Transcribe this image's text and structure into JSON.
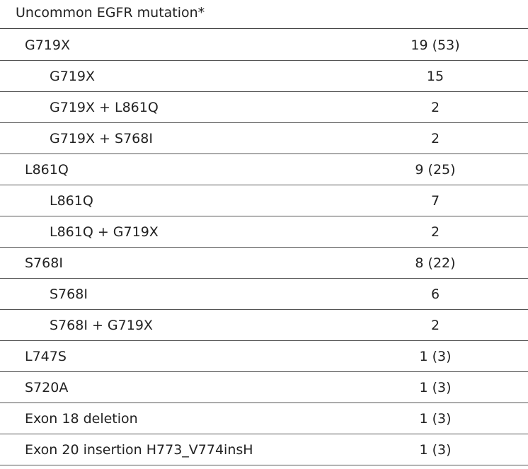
{
  "table": {
    "header": "Uncommon EGFR mutation*",
    "groups": [
      {
        "label": "G719X",
        "value": "19 (53)",
        "items": [
          {
            "label": "G719X",
            "value": "15"
          },
          {
            "label": "G719X + L861Q",
            "value": "2"
          },
          {
            "label": "G719X + S768I",
            "value": "2"
          }
        ]
      },
      {
        "label": "L861Q",
        "value": "9 (25)",
        "items": [
          {
            "label": "L861Q",
            "value": "7"
          },
          {
            "label": "L861Q + G719X",
            "value": "2"
          }
        ]
      },
      {
        "label": "S768I",
        "value": "8 (22)",
        "items": [
          {
            "label": "S768I",
            "value": "6"
          },
          {
            "label": "S768I + G719X",
            "value": "2"
          }
        ]
      },
      {
        "label": "L747S",
        "value": "1 (3)",
        "items": []
      },
      {
        "label": "S720A",
        "value": "1 (3)",
        "items": []
      },
      {
        "label": "Exon 18 deletion",
        "value": "1 (3)",
        "items": []
      },
      {
        "label": "Exon 20 insertion H773_V774insH",
        "value": "1 (3)",
        "items": []
      }
    ]
  }
}
